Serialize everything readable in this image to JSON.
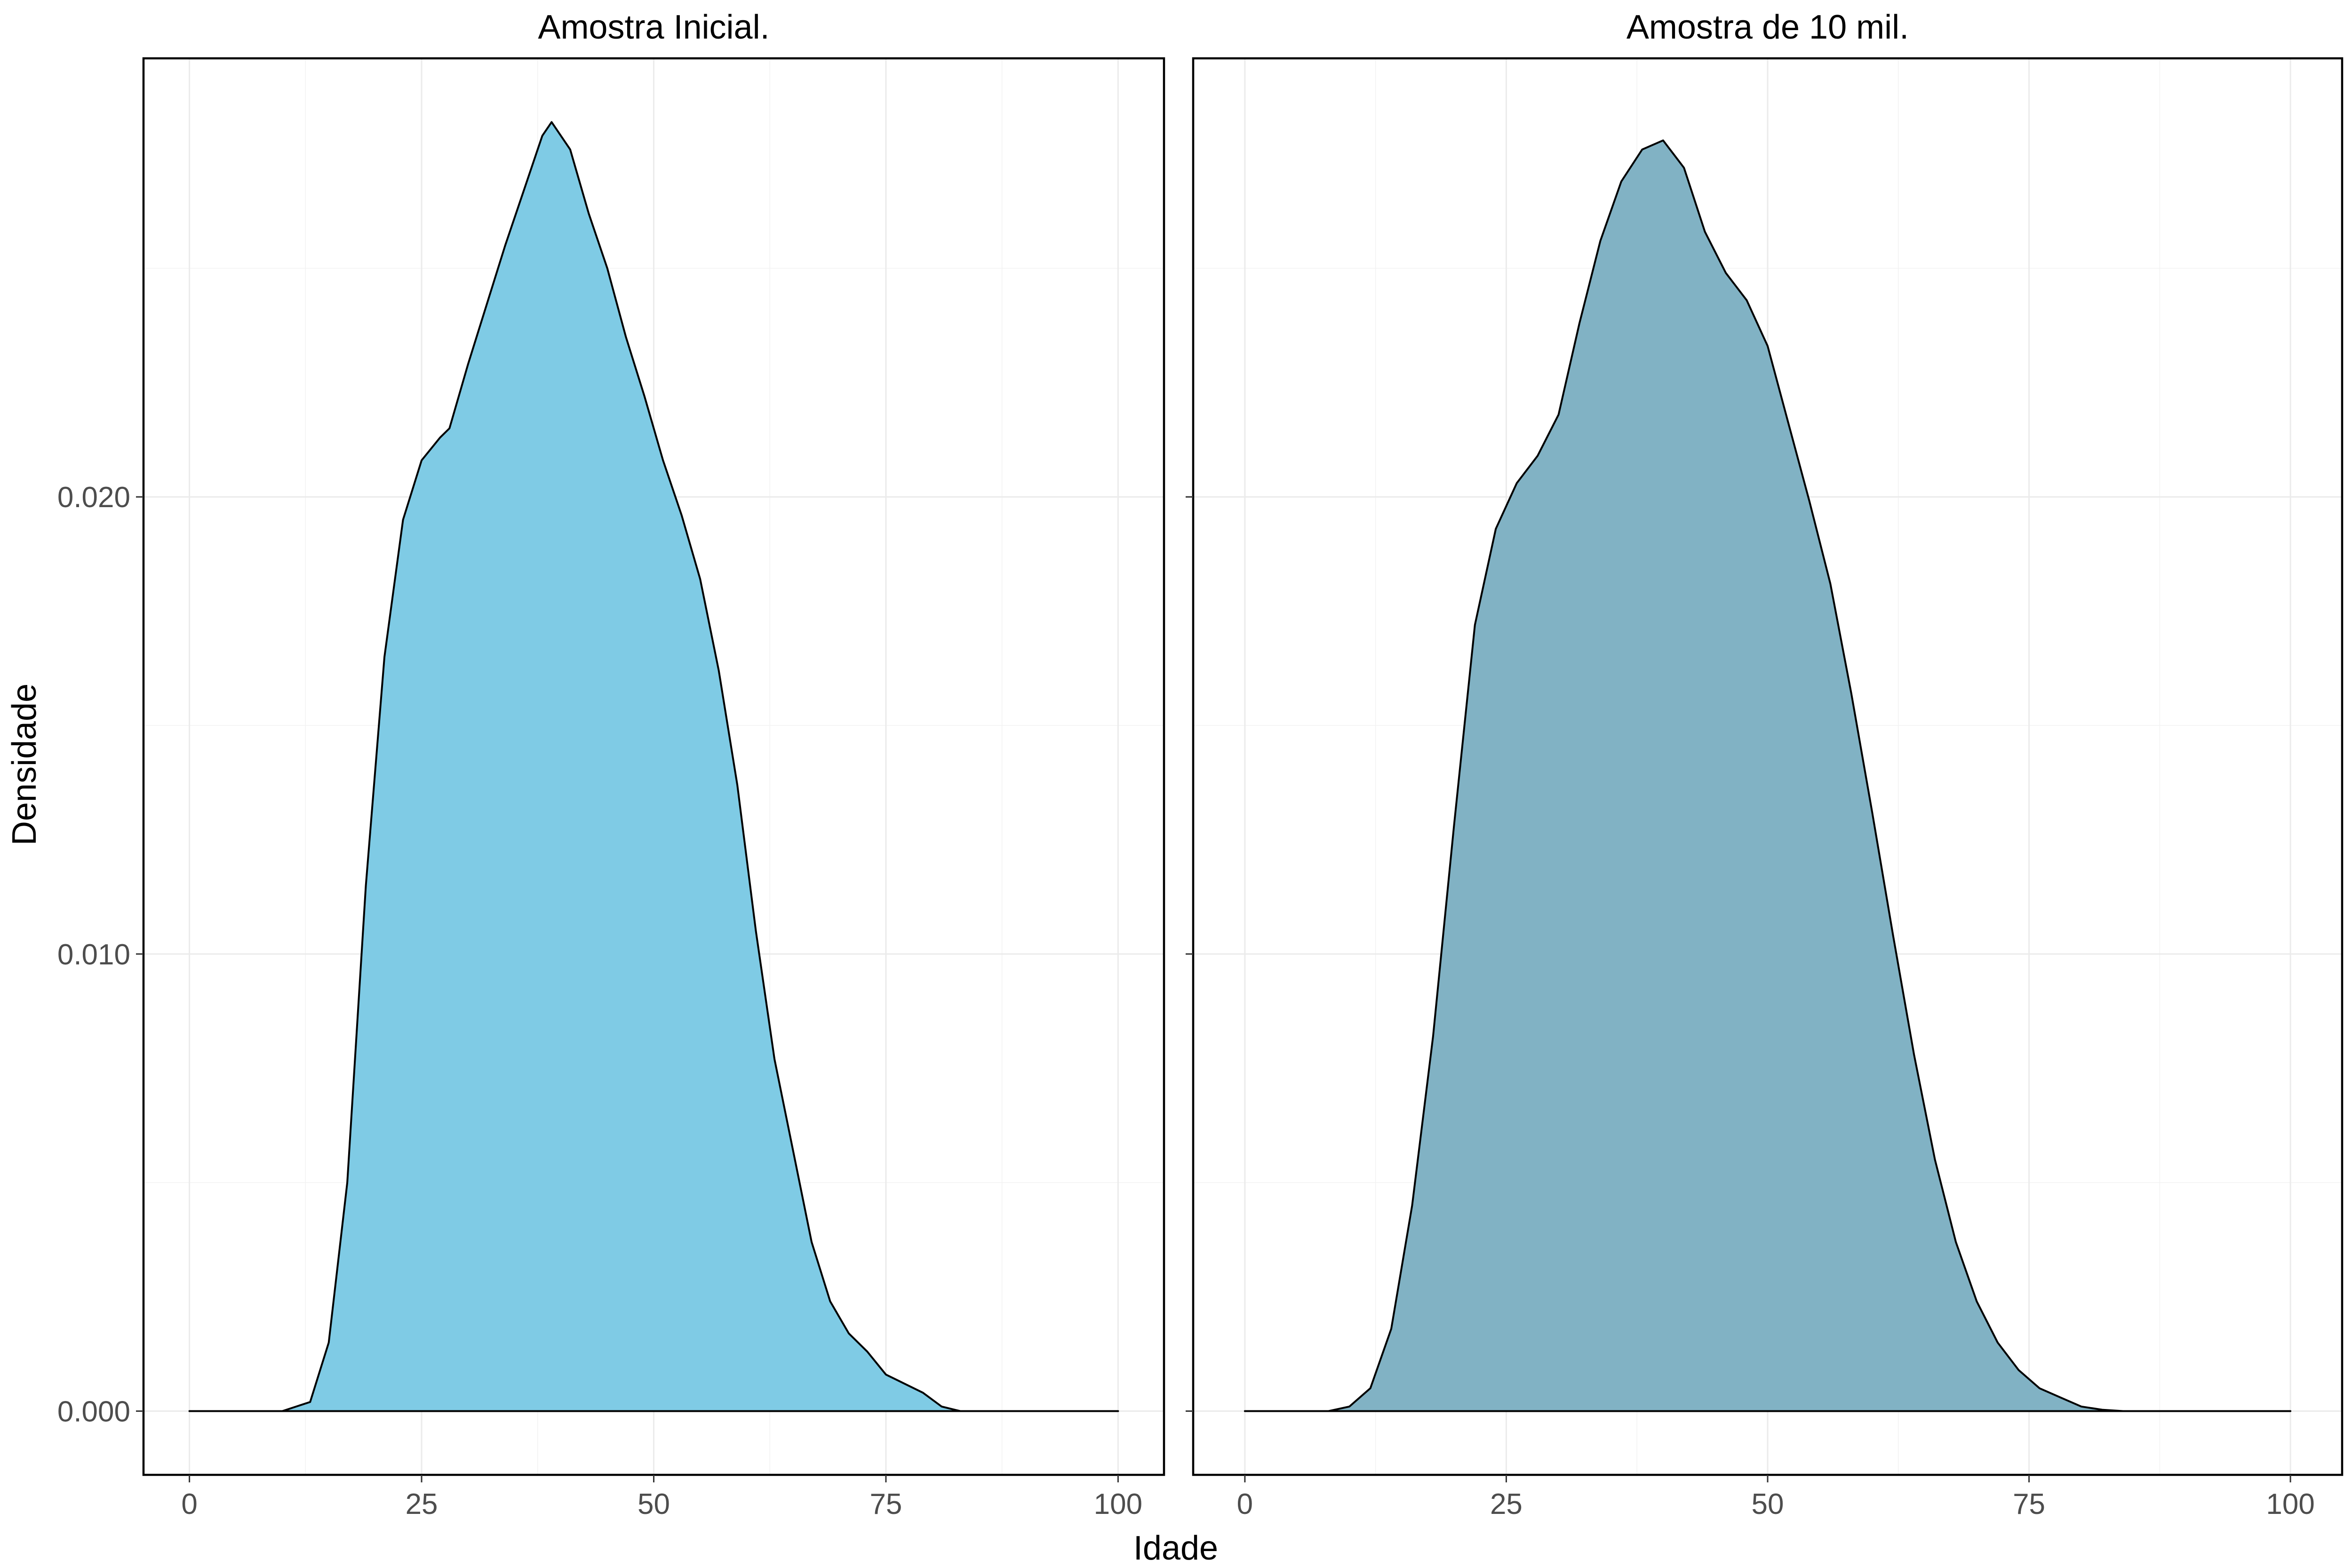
{
  "chart_data": {
    "type": "area",
    "xlabel": "Idade",
    "ylabel": "Densidade",
    "xlim": [
      0,
      100
    ],
    "ylim": [
      0,
      0.0282
    ],
    "x_ticks": [
      0,
      25,
      50,
      75,
      100
    ],
    "x_tick_labels": [
      "0",
      "25",
      "50",
      "75",
      "100"
    ],
    "y_ticks": [
      0,
      0.01,
      0.02
    ],
    "y_tick_labels": [
      "0.000",
      "0.010",
      "0.020"
    ],
    "grid": true,
    "legend": "none",
    "panels": [
      {
        "title": "Amostra Inicial.",
        "fill": "#7fcbe5",
        "x": [
          0,
          10,
          13,
          15,
          17,
          19,
          21,
          23,
          25,
          27,
          28,
          30,
          32,
          34,
          36,
          38,
          39,
          41,
          43,
          45,
          47,
          49,
          51,
          53,
          55,
          57,
          59,
          61,
          63,
          65,
          67,
          69,
          71,
          73,
          75,
          77,
          79,
          81,
          83,
          100
        ],
        "y": [
          0,
          0,
          0.0002,
          0.0015,
          0.005,
          0.0115,
          0.0165,
          0.0195,
          0.0208,
          0.0213,
          0.0215,
          0.0229,
          0.0242,
          0.0255,
          0.0267,
          0.0279,
          0.0282,
          0.0276,
          0.0262,
          0.025,
          0.0235,
          0.0222,
          0.0208,
          0.0196,
          0.0182,
          0.0162,
          0.0137,
          0.0105,
          0.0077,
          0.0057,
          0.0037,
          0.0024,
          0.0017,
          0.0013,
          0.0008,
          0.0006,
          0.0004,
          0.0001,
          0,
          0
        ]
      },
      {
        "title": "Amostra de 10 mil.",
        "fill": "#81b2c4",
        "x": [
          0,
          8,
          10,
          12,
          14,
          16,
          18,
          20,
          22,
          24,
          26,
          28,
          30,
          32,
          34,
          36,
          38,
          40,
          42,
          44,
          46,
          48,
          50,
          52,
          54,
          56,
          58,
          60,
          62,
          64,
          66,
          68,
          70,
          72,
          74,
          76,
          78,
          80,
          82,
          84,
          100
        ],
        "y": [
          0,
          0,
          0.0001,
          0.0005,
          0.0018,
          0.0045,
          0.0082,
          0.0128,
          0.0172,
          0.0193,
          0.0203,
          0.0209,
          0.0218,
          0.0238,
          0.0256,
          0.0269,
          0.0276,
          0.0278,
          0.0272,
          0.0258,
          0.0249,
          0.0243,
          0.0233,
          0.0216,
          0.0199,
          0.0181,
          0.0157,
          0.0131,
          0.0104,
          0.0078,
          0.0055,
          0.0037,
          0.0024,
          0.0015,
          0.0009,
          0.0005,
          0.0003,
          0.0001,
          3e-05,
          0,
          0
        ]
      }
    ]
  }
}
